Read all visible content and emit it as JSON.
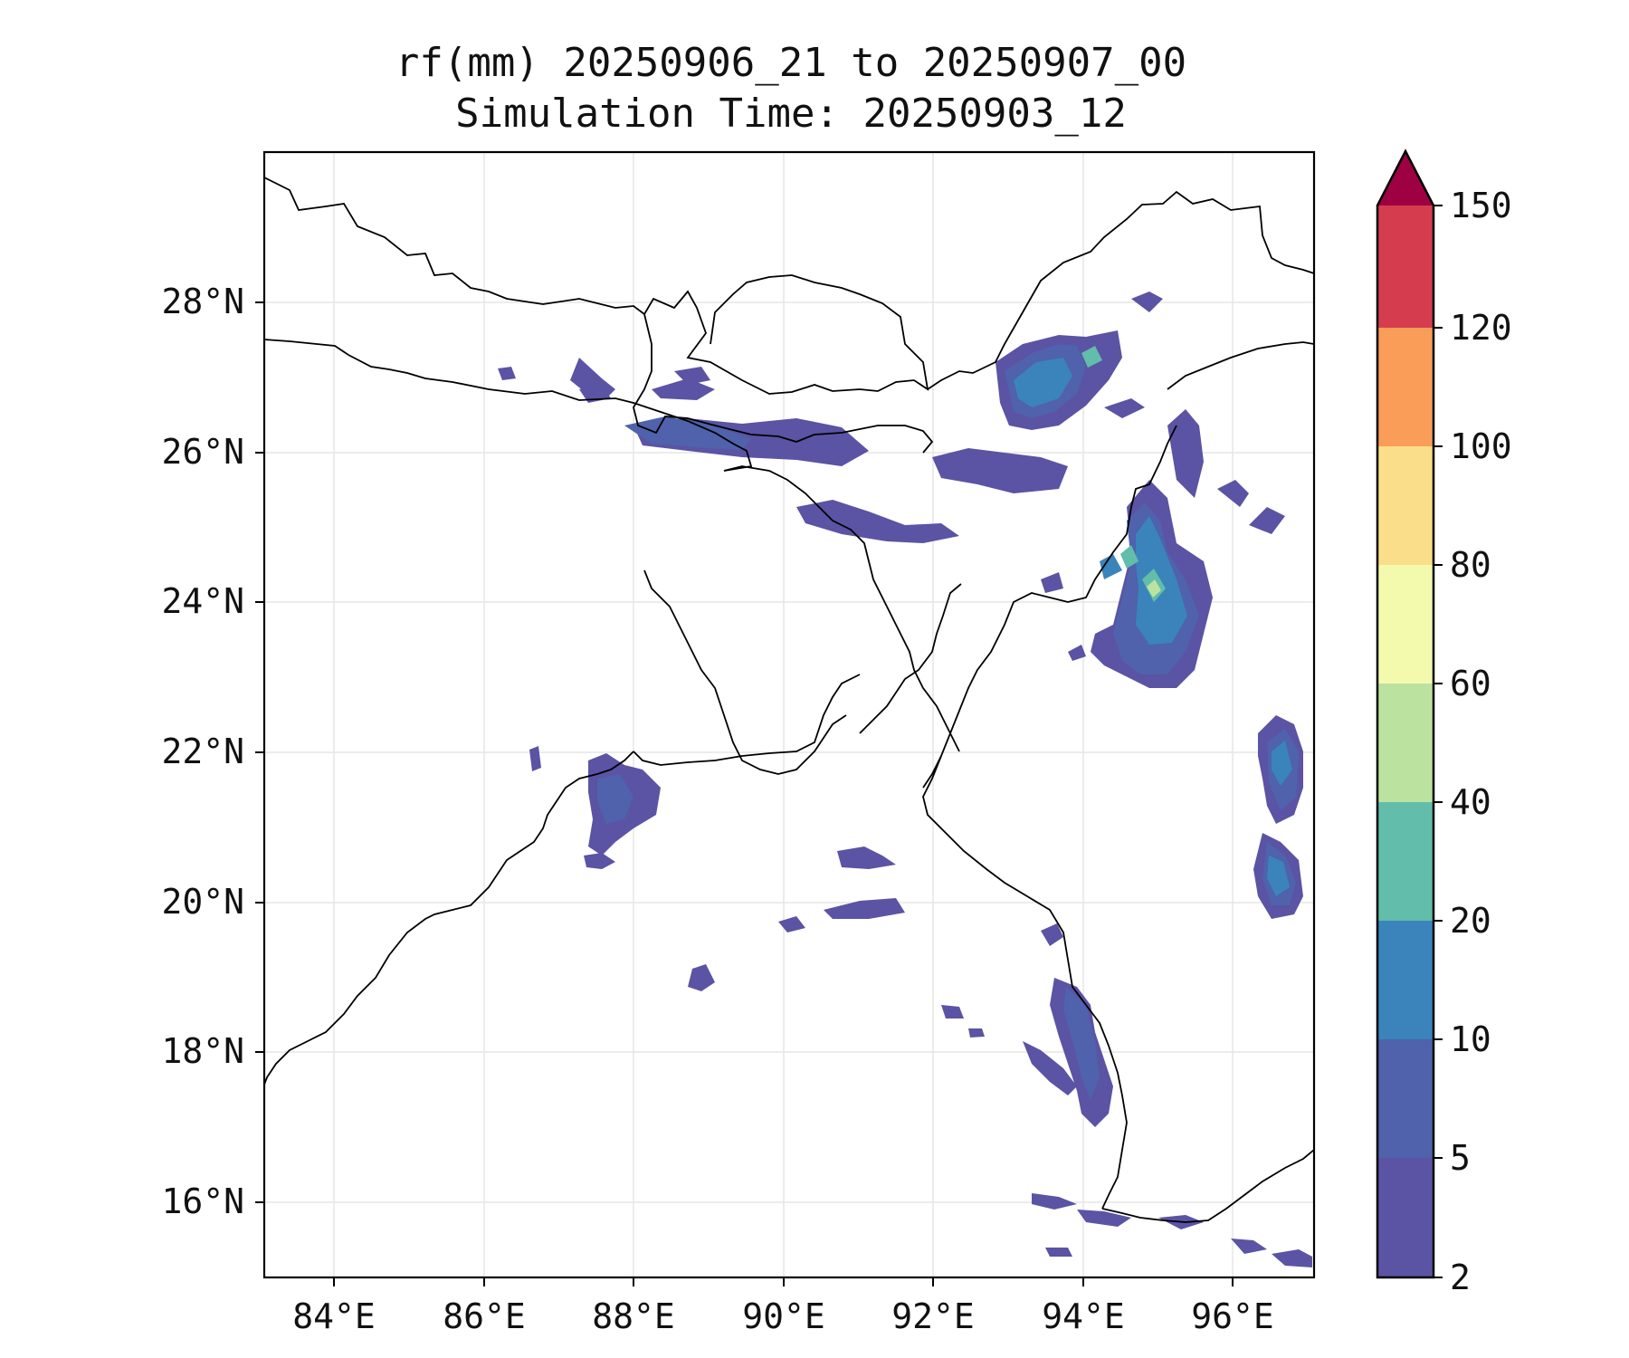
{
  "map": {
    "title_line1": "rf(mm) 20250906_21 to 20250907_00",
    "title_line2": "Simulation Time: 20250903_12",
    "lon_range": [
      83.0,
      97.0
    ],
    "lat_range": [
      15.0,
      30.0
    ],
    "x_ticks": [
      "84°E",
      "86°E",
      "88°E",
      "90°E",
      "92°E",
      "94°E",
      "96°E"
    ],
    "y_ticks": [
      "16°N",
      "18°N",
      "20°N",
      "22°N",
      "24°N",
      "26°N",
      "28°N"
    ],
    "gridlines": true
  },
  "colorbar": {
    "levels": [
      "2",
      "5",
      "10",
      "20",
      "40",
      "60",
      "80",
      "100",
      "120",
      "150"
    ],
    "colors": [
      "#5b53a4",
      "#4f62ab",
      "#3a84bb",
      "#62bdab",
      "#bce2a0",
      "#f3faad",
      "#fbde89",
      "#f99d58",
      "#d53d4e",
      "#9e0142"
    ],
    "extend": "max"
  }
}
